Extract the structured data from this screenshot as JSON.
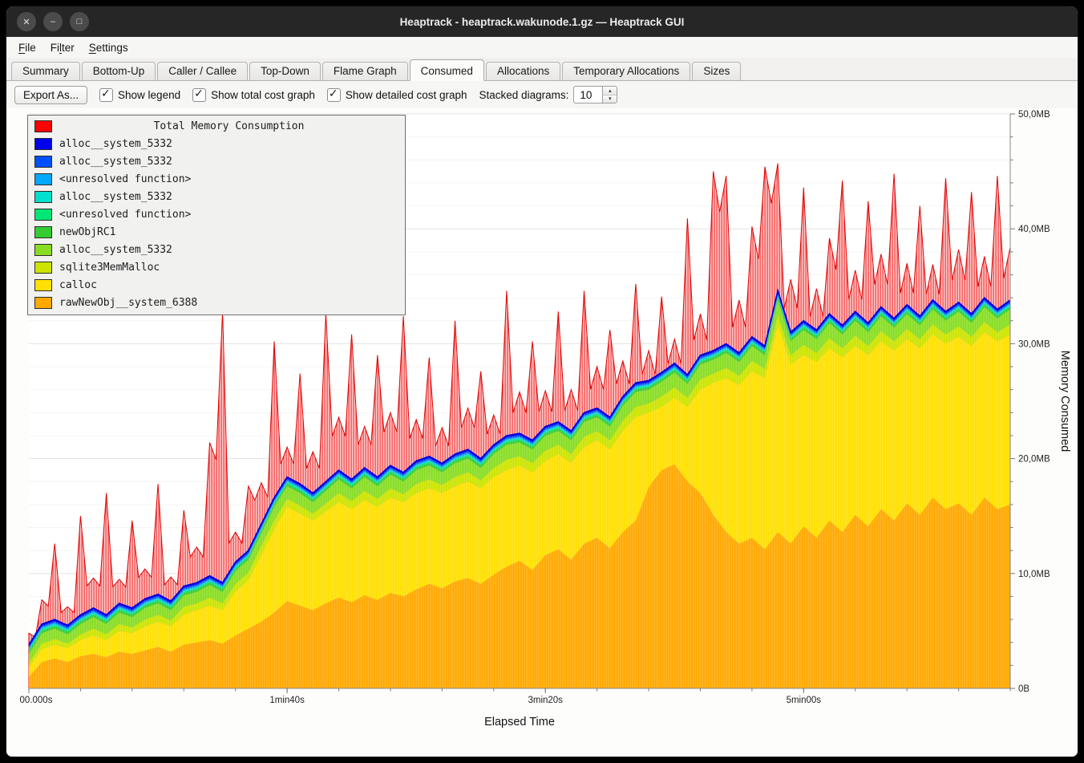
{
  "window": {
    "title": "Heaptrack - heaptrack.wakunode.1.gz — Heaptrack GUI",
    "controls": [
      {
        "name": "close",
        "glyph": "✕"
      },
      {
        "name": "minimize",
        "glyph": "–"
      },
      {
        "name": "maximize",
        "glyph": "□"
      }
    ]
  },
  "menubar": {
    "items": [
      {
        "label": "File",
        "mnemonic_index": 0
      },
      {
        "label": "Filter",
        "mnemonic_index": 2
      },
      {
        "label": "Settings",
        "mnemonic_index": 0
      }
    ]
  },
  "tabs": {
    "active": "Consumed",
    "items": [
      "Summary",
      "Bottom-Up",
      "Caller / Callee",
      "Top-Down",
      "Flame Graph",
      "Consumed",
      "Allocations",
      "Temporary Allocations",
      "Sizes"
    ]
  },
  "toolbar": {
    "export_button": "Export As...",
    "check_glyph": "✓",
    "checkboxes": [
      {
        "label": "Show legend",
        "checked": true
      },
      {
        "label": "Show total cost graph",
        "checked": true
      },
      {
        "label": "Show detailed cost graph",
        "checked": true
      }
    ],
    "stacked_diagrams_label": "Stacked diagrams:",
    "stacked_diagrams_value": "10",
    "spin_up_glyph": "▴",
    "spin_down_glyph": "▾"
  },
  "legend": {
    "title": "Total Memory Consumption",
    "title_color": "#ff0000",
    "items": [
      {
        "label": "alloc__system_5332",
        "color": "#0000ee"
      },
      {
        "label": "alloc__system_5332",
        "color": "#0050ff"
      },
      {
        "label": "<unresolved function>",
        "color": "#00a8ff"
      },
      {
        "label": "alloc__system_5332",
        "color": "#00e0cc"
      },
      {
        "label": "<unresolved function>",
        "color": "#00e676"
      },
      {
        "label": "newObjRC1",
        "color": "#33cc33"
      },
      {
        "label": "alloc__system_5332",
        "color": "#88dd22"
      },
      {
        "label": "sqlite3MemMalloc",
        "color": "#cce400"
      },
      {
        "label": "calloc",
        "color": "#ffe000"
      },
      {
        "label": "rawNewObj__system_6388",
        "color": "#ffa800"
      }
    ]
  },
  "chart_data": {
    "type": "area",
    "stacked": true,
    "title": "Total Memory Consumption",
    "xlabel": "Elapsed Time",
    "ylabel": "Memory Consumed",
    "x_unit": "seconds",
    "y_unit": "MB",
    "xlim": [
      0,
      380
    ],
    "ylim": [
      0,
      50
    ],
    "y_major_step": 10,
    "y_minor_step": 2,
    "x_minor_step": 20,
    "y_major_labels": [
      "0B",
      "10,0MB",
      "20,0MB",
      "30,0MB",
      "40,0MB",
      "50,0MB"
    ],
    "x_major_ticks": [
      {
        "pos": 0,
        "label": "00.000s"
      },
      {
        "pos": 100,
        "label": "1min40s"
      },
      {
        "pos": 200,
        "label": "3min20s"
      },
      {
        "pos": 300,
        "label": "5min00s"
      }
    ],
    "x": [
      0,
      5,
      10,
      15,
      20,
      25,
      30,
      35,
      40,
      45,
      50,
      55,
      60,
      65,
      70,
      75,
      80,
      85,
      90,
      95,
      100,
      105,
      110,
      115,
      120,
      125,
      130,
      135,
      140,
      145,
      150,
      155,
      160,
      165,
      170,
      175,
      180,
      185,
      190,
      195,
      200,
      205,
      210,
      215,
      220,
      225,
      230,
      235,
      240,
      245,
      250,
      255,
      260,
      265,
      270,
      275,
      280,
      285,
      290,
      295,
      300,
      305,
      310,
      315,
      320,
      325,
      330,
      335,
      340,
      345,
      350,
      355,
      360,
      365,
      370,
      375,
      380
    ],
    "series": [
      {
        "name": "rawNewObj__system_6388",
        "color": "#ffa800",
        "values": [
          1.0,
          2.3,
          2.6,
          2.3,
          2.8,
          3.0,
          2.7,
          3.2,
          3.0,
          3.3,
          3.6,
          3.2,
          3.8,
          4.0,
          4.2,
          3.9,
          4.6,
          5.2,
          5.8,
          6.6,
          7.6,
          7.2,
          6.8,
          7.4,
          7.9,
          7.5,
          8.1,
          7.7,
          8.3,
          8.0,
          8.6,
          9.1,
          8.7,
          9.3,
          9.6,
          9.1,
          9.9,
          10.6,
          11.1,
          10.3,
          11.6,
          12.1,
          11.2,
          12.6,
          13.1,
          12.2,
          13.6,
          14.6,
          17.5,
          19.0,
          19.5,
          18.0,
          17.0,
          15.1,
          13.6,
          12.6,
          13.1,
          12.1,
          13.6,
          12.6,
          14.1,
          13.1,
          14.6,
          13.6,
          15.1,
          14.1,
          15.6,
          14.6,
          16.1,
          15.1,
          16.6,
          15.6,
          16.1,
          15.1,
          16.6,
          15.6,
          16.0
        ]
      },
      {
        "name": "calloc",
        "color": "#ffe000",
        "values": [
          0.8,
          1.1,
          1.2,
          1.2,
          1.4,
          1.6,
          1.5,
          1.8,
          1.8,
          2.1,
          2.2,
          2.2,
          2.6,
          2.8,
          3.0,
          2.9,
          3.8,
          4.2,
          5.8,
          7.2,
          8.2,
          8.0,
          7.8,
          8.0,
          8.3,
          8.1,
          8.3,
          8.1,
          8.3,
          8.2,
          8.4,
          8.3,
          8.3,
          8.3,
          8.4,
          8.3,
          8.5,
          8.4,
          8.3,
          8.5,
          8.2,
          8.3,
          8.4,
          8.4,
          8.5,
          8.6,
          8.8,
          9.0,
          6.5,
          5.5,
          5.8,
          6.5,
          9.0,
          11.5,
          13.4,
          13.8,
          14.5,
          14.9,
          18.0,
          15.6,
          14.9,
          15.3,
          15.0,
          15.2,
          14.7,
          14.9,
          14.6,
          14.8,
          14.3,
          14.5,
          14.2,
          14.4,
          14.5,
          14.7,
          14.4,
          14.6,
          14.8
        ]
      },
      {
        "name": "sqlite3MemMalloc",
        "color": "#cce400",
        "values": [
          0.4,
          0.5,
          0.5,
          0.4,
          0.5,
          0.6,
          0.5,
          0.6,
          0.5,
          0.6,
          0.6,
          0.5,
          0.7,
          0.6,
          0.7,
          0.6,
          0.7,
          0.7,
          0.8,
          0.8,
          0.7,
          0.7,
          0.6,
          0.7,
          0.8,
          0.7,
          0.8,
          0.7,
          0.8,
          0.7,
          0.8,
          0.8,
          0.7,
          0.8,
          0.8,
          0.7,
          0.8,
          0.9,
          0.8,
          0.8,
          0.9,
          0.8,
          0.8,
          0.9,
          0.8,
          0.8,
          0.9,
          0.9,
          0.8,
          0.9,
          0.9,
          0.8,
          0.9,
          0.8,
          0.9,
          0.8,
          0.9,
          0.8,
          0.9,
          0.8,
          0.9,
          0.8,
          0.9,
          0.8,
          0.9,
          0.8,
          0.9,
          0.8,
          0.9,
          0.8,
          0.9,
          0.8,
          0.9,
          0.8,
          0.9,
          0.8,
          0.9
        ]
      },
      {
        "name": "alloc__system_5332",
        "color": "#88dd22",
        "values": [
          0.8,
          0.9,
          0.9,
          0.8,
          0.9,
          1.0,
          0.9,
          1.0,
          0.9,
          1.0,
          1.0,
          0.9,
          1.0,
          1.0,
          1.1,
          1.0,
          1.1,
          1.1,
          1.1,
          1.2,
          1.1,
          1.1,
          1.0,
          1.1,
          1.2,
          1.1,
          1.2,
          1.1,
          1.2,
          1.1,
          1.2,
          1.2,
          1.1,
          1.2,
          1.2,
          1.1,
          1.2,
          1.3,
          1.2,
          1.2,
          1.3,
          1.2,
          1.2,
          1.3,
          1.2,
          1.2,
          1.3,
          1.3,
          1.2,
          1.3,
          1.3,
          1.2,
          1.3,
          1.2,
          1.3,
          1.2,
          1.3,
          1.2,
          1.3,
          1.2,
          1.3,
          1.2,
          1.3,
          1.2,
          1.3,
          1.2,
          1.3,
          1.2,
          1.3,
          1.2,
          1.3,
          1.2,
          1.3,
          1.2,
          1.3,
          1.2,
          1.3
        ]
      },
      {
        "name": "newObjRC1",
        "color": "#33cc33",
        "constant": 0.2
      },
      {
        "name": "<unresolved function>",
        "color": "#00e676",
        "constant": 0.12
      },
      {
        "name": "alloc__system_5332",
        "color": "#00e0cc",
        "constant": 0.1
      },
      {
        "name": "<unresolved function>",
        "color": "#00a8ff",
        "constant": 0.1
      },
      {
        "name": "alloc__system_5332",
        "color": "#0050ff",
        "constant": 0.12
      },
      {
        "name": "alloc__system_5332",
        "color": "#0000ee",
        "constant": 0.15
      }
    ],
    "total": {
      "name": "Total Memory Consumption",
      "color": "#ff0000",
      "values": [
        4.8,
        7.7,
        12.6,
        7.1,
        15.0,
        9.6,
        17.0,
        9.5,
        14.6,
        10.4,
        17.8,
        9.7,
        15.5,
        12.3,
        21.4,
        32.8,
        13.6,
        17.6,
        17.9,
        30.2,
        21.0,
        27.4,
        20.6,
        32.6,
        23.6,
        30.8,
        22.8,
        29.0,
        24.0,
        32.4,
        23.4,
        28.8,
        22.7,
        32.0,
        24.4,
        27.6,
        23.8,
        34.6,
        25.8,
        30.2,
        25.9,
        32.8,
        26.0,
        34.6,
        28.0,
        31.2,
        28.5,
        35.2,
        29.4,
        34.1,
        30.4,
        40.9,
        32.6,
        45.0,
        44.6,
        33.8,
        40.2,
        45.4,
        45.7,
        35.6,
        43.6,
        34.8,
        39.2,
        44.2,
        36.4,
        42.4,
        37.8,
        44.8,
        37.0,
        42.0,
        36.9,
        44.4,
        38.2,
        43.2,
        37.6,
        44.6,
        38.4
      ]
    }
  }
}
